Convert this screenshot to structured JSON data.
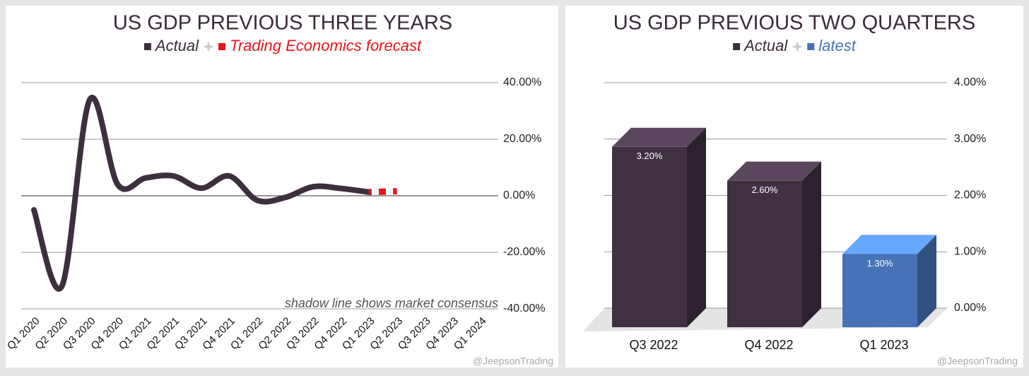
{
  "chart_data": [
    {
      "type": "line",
      "title": "US GDP PREVIOUS THREE YEARS",
      "categories": [
        "Q1 2020",
        "Q2 2020",
        "Q3 2020",
        "Q4 2020",
        "Q1 2021",
        "Q2 2021",
        "Q3 2021",
        "Q4 2021",
        "Q1 2022",
        "Q2 2022",
        "Q3 2022",
        "Q4 2022",
        "Q1 2023",
        "Q2 2023",
        "Q3 2023",
        "Q4 2023",
        "Q1 2024"
      ],
      "series": [
        {
          "name": "Actual",
          "color": "#3d2f3d",
          "values": [
            -5,
            -32,
            34,
            4,
            6.3,
            7,
            2.7,
            7,
            -1.6,
            -0.6,
            3.2,
            2.6,
            1.3,
            null,
            null,
            null,
            null
          ]
        },
        {
          "name": "Trading Economics forecast",
          "color": "#e8141c",
          "values": [
            null,
            null,
            null,
            null,
            null,
            null,
            null,
            null,
            null,
            null,
            null,
            null,
            1.3,
            1.6,
            null,
            null,
            null
          ]
        }
      ],
      "ylim": [
        -40,
        40
      ],
      "yticks": [
        {
          "value": -40,
          "label": "-40.00%"
        },
        {
          "value": -20,
          "label": "-20.00%"
        },
        {
          "value": 0,
          "label": "0.00%"
        },
        {
          "value": 20,
          "label": "20.00%"
        },
        {
          "value": 40,
          "label": "40.00%"
        }
      ],
      "grid": true,
      "annotation": "shadow line shows market consensus",
      "watermark": "@JeepsonTrading"
    },
    {
      "type": "bar3d",
      "title": "US GDP PREVIOUS TWO QUARTERS",
      "categories": [
        "Q3 2022",
        "Q4 2022",
        "Q1 2023"
      ],
      "values": [
        3.2,
        2.6,
        1.3
      ],
      "value_labels": [
        "3.20%",
        "2.60%",
        "1.30%"
      ],
      "colors": [
        "#3f3140",
        "#3f3140",
        "#4673b8"
      ],
      "legend": [
        {
          "name": "Actual",
          "color": "#3d2f3d"
        },
        {
          "name": "latest",
          "color": "#4673b8"
        }
      ],
      "ylim": [
        0,
        4
      ],
      "yticks": [
        {
          "value": 0,
          "label": "0.00%"
        },
        {
          "value": 1,
          "label": "1.00%"
        },
        {
          "value": 2,
          "label": "2.00%"
        },
        {
          "value": 3,
          "label": "3.00%"
        },
        {
          "value": 4,
          "label": "4.00%"
        }
      ],
      "grid": true,
      "watermark": "@JeepsonTrading"
    }
  ]
}
